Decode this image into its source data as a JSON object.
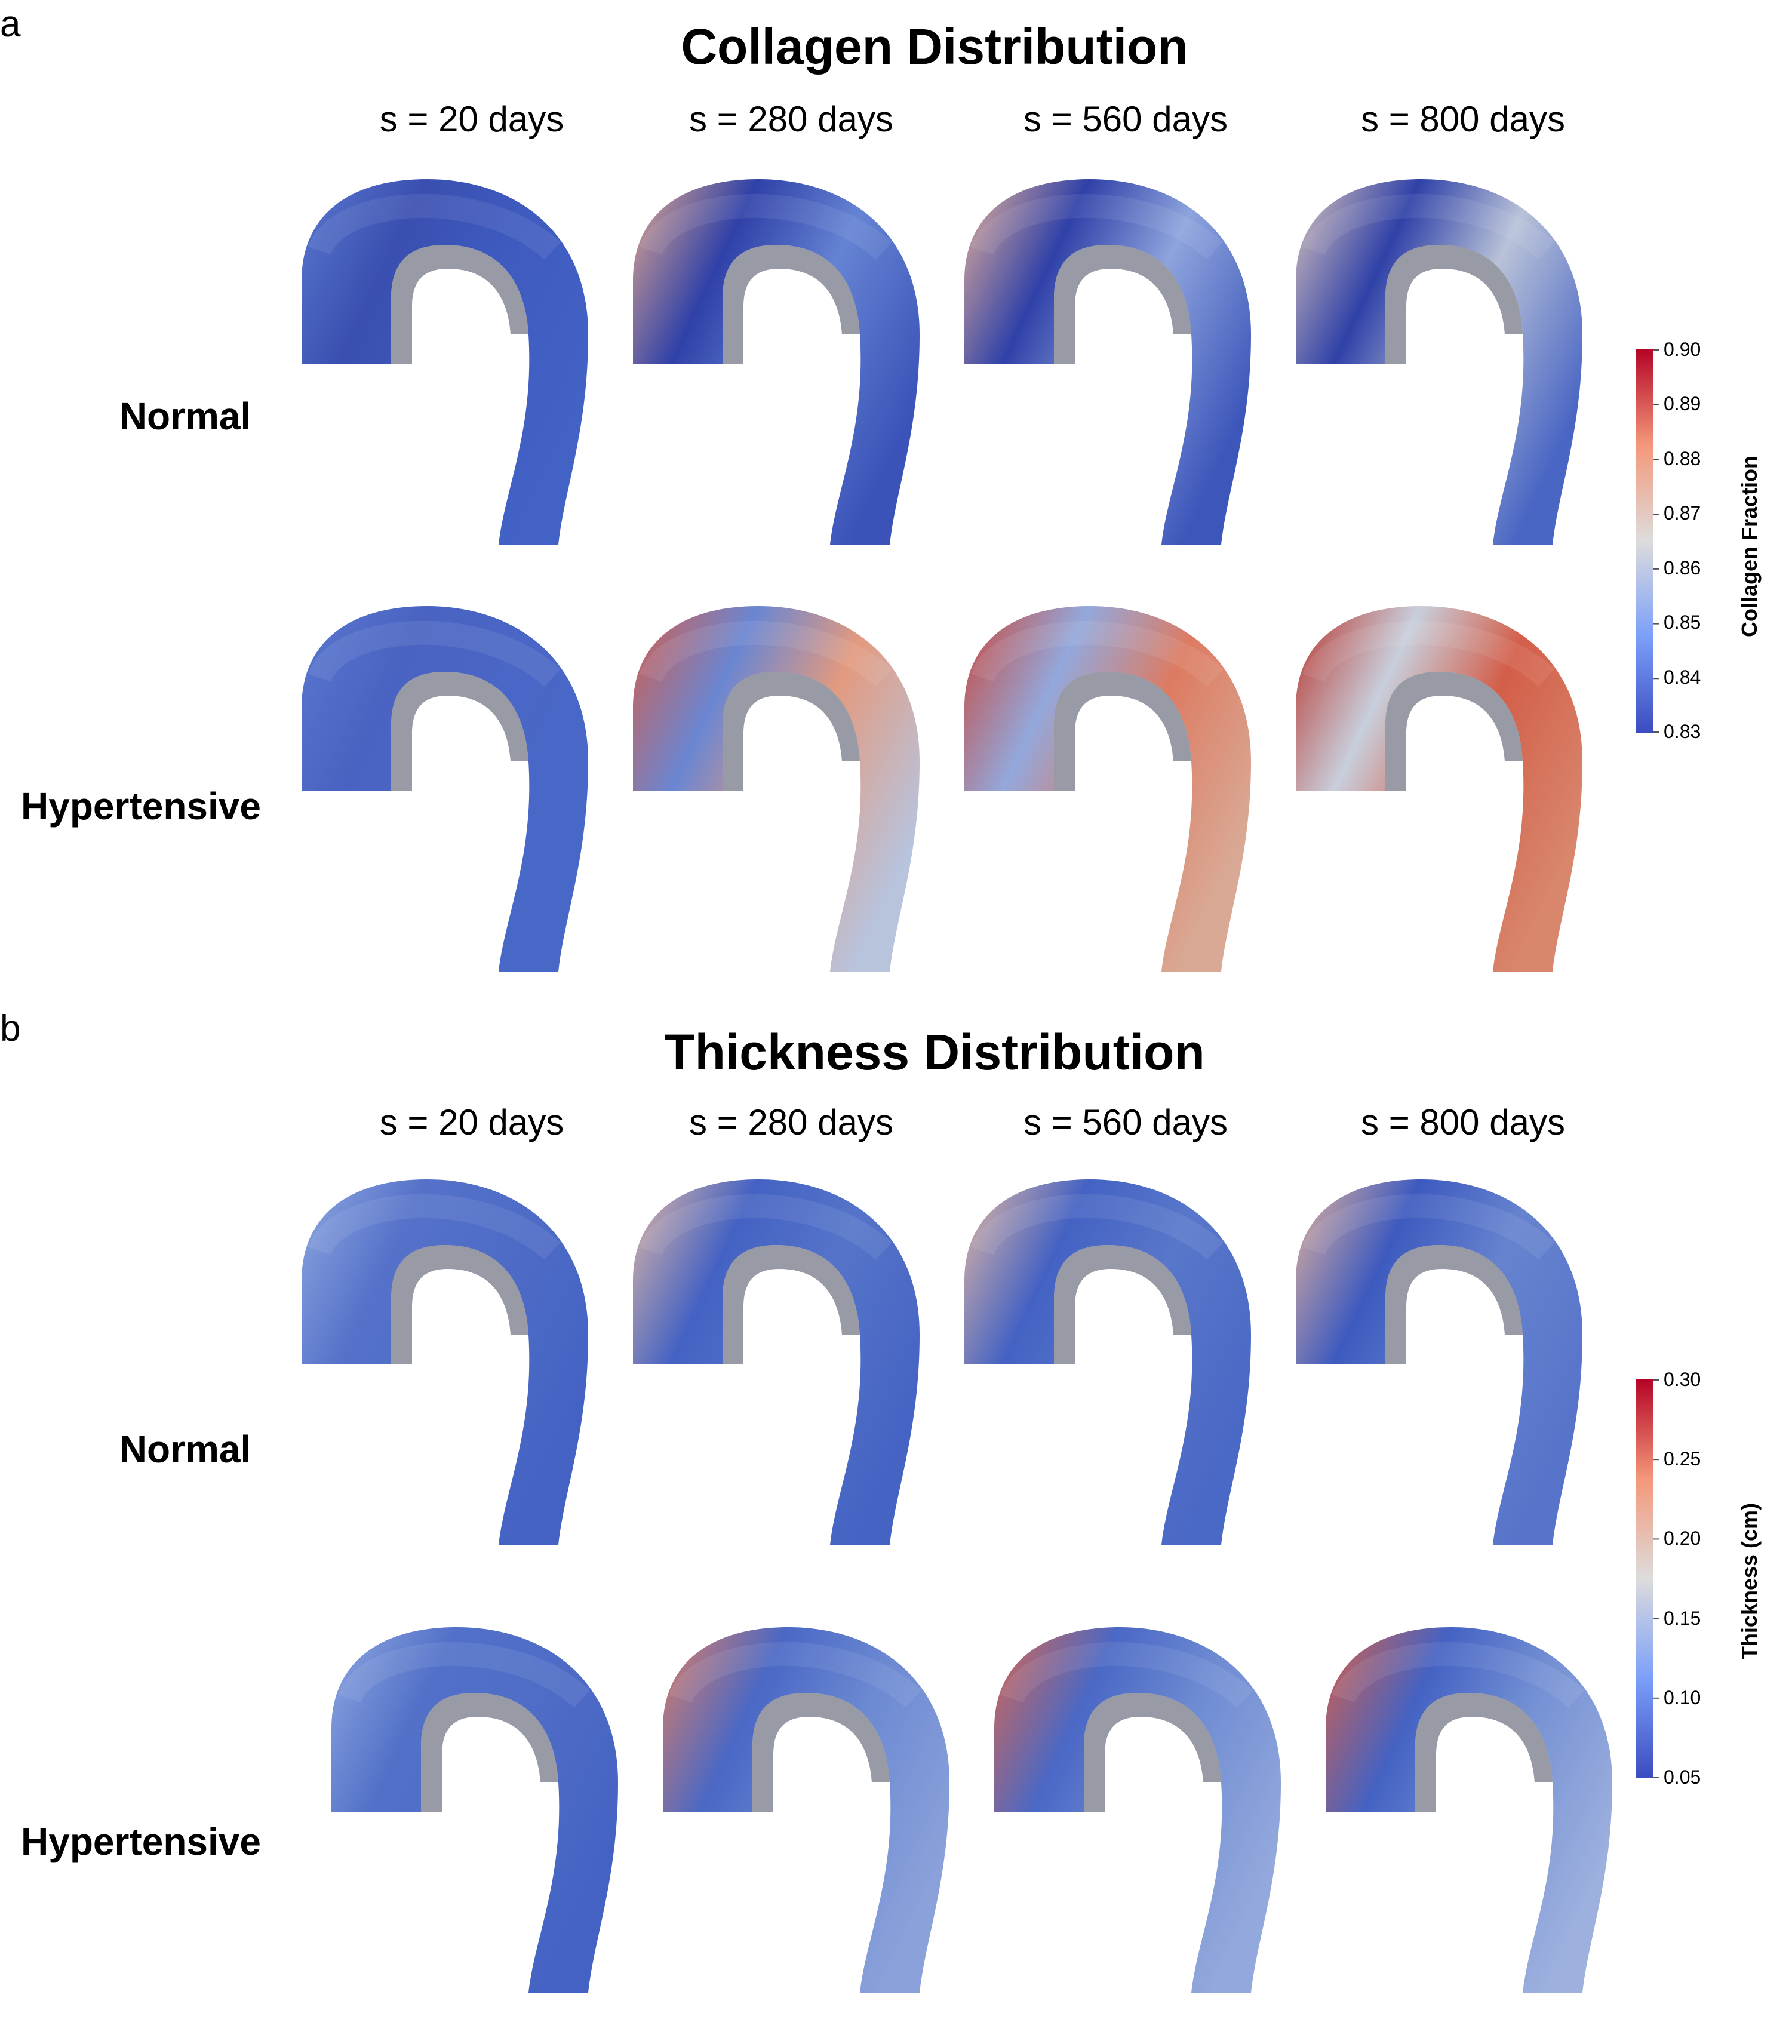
{
  "panels": [
    {
      "letter": "a",
      "title": "Collagen Distribution",
      "columns": [
        "s = 20 days",
        "s = 280 days",
        "s = 560 days",
        "s = 800 days"
      ],
      "rows": [
        "Normal",
        "Hypertensive"
      ],
      "colorbar": {
        "title": "Collagen Fraction",
        "ticks": [
          "0.90",
          "0.89",
          "0.88",
          "0.87",
          "0.86",
          "0.85",
          "0.84",
          "0.83"
        ],
        "min": 0.83,
        "max": 0.9
      },
      "colors": {
        "Normal": [
          {
            "top": "#3a4fb0",
            "inlet": "#5a78cf",
            "mid": "#3f5bc0",
            "dist": "#4362c6"
          },
          {
            "top": "#2f41a8",
            "inlet": "#e3a890",
            "mid": "#6583d3",
            "dist": "#3b53b8"
          },
          {
            "top": "#2f41a8",
            "inlet": "#e7b19a",
            "mid": "#8ea4dd",
            "dist": "#3d56ba"
          },
          {
            "top": "#2f41a8",
            "inlet": "#ddc6bd",
            "mid": "#b9c2d8",
            "dist": "#4a66c4"
          }
        ],
        "Hypertensive": [
          {
            "top": "#4a63c2",
            "inlet": "#5a78cf",
            "mid": "#4a66c6",
            "dist": "#4868c7"
          },
          {
            "top": "#6a86d2",
            "inlet": "#d45d4b",
            "mid": "#e39a7f",
            "dist": "#b8c3dc"
          },
          {
            "top": "#93a8dc",
            "inlet": "#c9473b",
            "mid": "#dd7b62",
            "dist": "#d9a995"
          },
          {
            "top": "#c8cfdc",
            "inlet": "#b8332c",
            "mid": "#d35e49",
            "dist": "#d8866c"
          }
        ]
      }
    },
    {
      "letter": "b",
      "title": "Thickness Distribution",
      "columns": [
        "s = 20 days",
        "s = 280 days",
        "s = 560 days",
        "s = 800 days"
      ],
      "rows": [
        "Normal",
        "Hypertensive"
      ],
      "colorbar": {
        "title": "Thickness (cm)",
        "ticks": [
          "0.30",
          "0.25",
          "0.20",
          "0.15",
          "0.10",
          "0.05"
        ],
        "min": 0.05,
        "max": 0.3
      },
      "colors": {
        "Normal": [
          {
            "top": "#5571c9",
            "inlet": "#8fa8e0",
            "mid": "#4e6cc6",
            "dist": "#4462c3"
          },
          {
            "top": "#4462c3",
            "inlet": "#e0b8a6",
            "mid": "#5574c9",
            "dist": "#4563c3"
          },
          {
            "top": "#4462c3",
            "inlet": "#e3b8a4",
            "mid": "#5877ca",
            "dist": "#4a68c5"
          },
          {
            "top": "#3d5abf",
            "inlet": "#e5b39d",
            "mid": "#6683cf",
            "dist": "#5774ca"
          }
        ],
        "Hypertensive": [
          {
            "top": "#5270c8",
            "inlet": "#8fa8e0",
            "mid": "#4f6dc6",
            "dist": "#4462c3"
          },
          {
            "top": "#4a68c5",
            "inlet": "#dd7e66",
            "mid": "#6c89d2",
            "dist": "#8aa1da"
          },
          {
            "top": "#4a68c5",
            "inlet": "#d9664f",
            "mid": "#6f8cd3",
            "dist": "#93a8dc"
          },
          {
            "top": "#4462c3",
            "inlet": "#d6604a",
            "mid": "#7490d4",
            "dist": "#9db0de"
          }
        ]
      }
    }
  ]
}
